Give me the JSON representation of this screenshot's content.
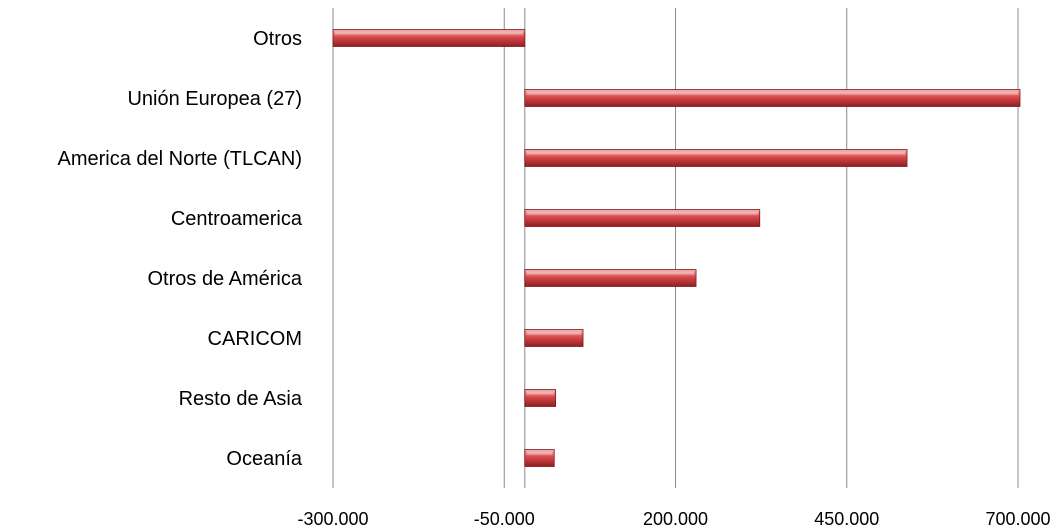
{
  "chart_data": {
    "type": "bar",
    "orientation": "horizontal",
    "categories": [
      "Otros",
      "Unión Europea (27)",
      "America del Norte (TLCAN)",
      "Centroamerica",
      "Otros de América",
      "CARICOM",
      "Resto de Asia",
      "Oceanía"
    ],
    "values": [
      -300000,
      704000,
      538000,
      323000,
      230000,
      65000,
      25000,
      23000
    ],
    "xlim": [
      -300000,
      700000
    ],
    "xticks": [
      -300000,
      -50000,
      200000,
      450000,
      700000
    ],
    "xtick_labels": [
      "-300.000",
      "-50.000",
      "200.000",
      "450.000",
      "700.000"
    ],
    "grid": "vertical",
    "bar_color": "#c0393b",
    "title": "",
    "xlabel": "",
    "ylabel": ""
  }
}
